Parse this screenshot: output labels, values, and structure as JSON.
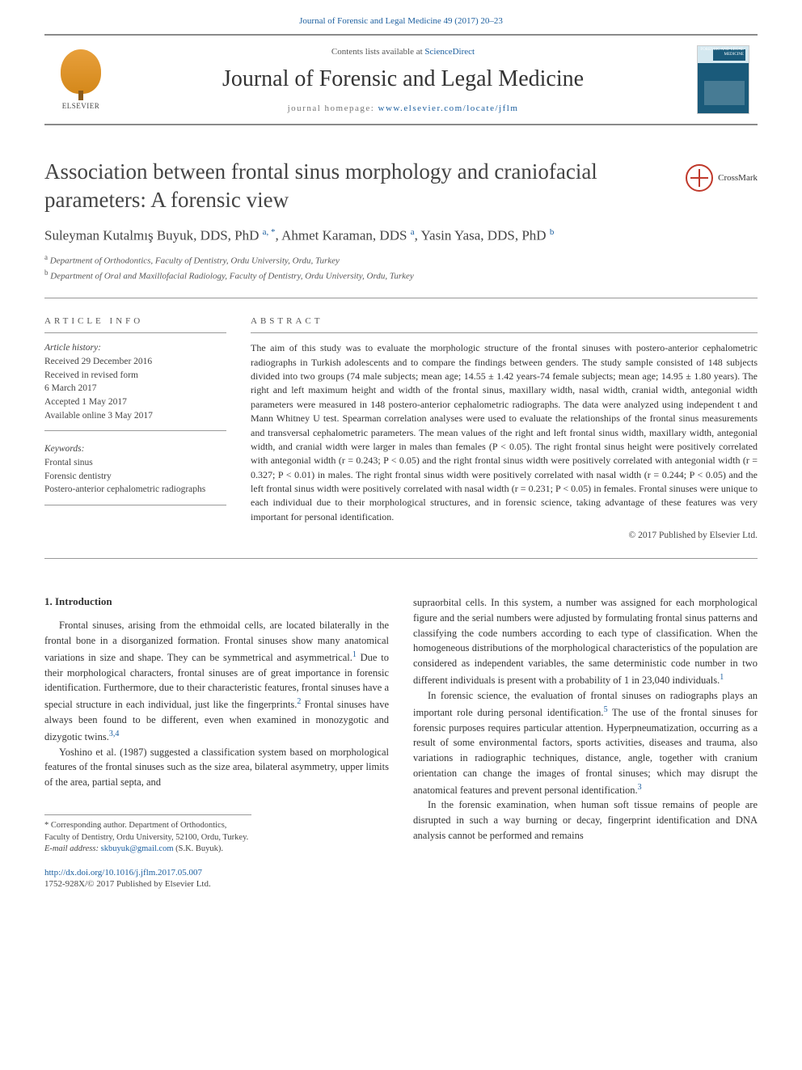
{
  "citation": {
    "text": "Journal of Forensic and Legal Medicine 49 (2017) 20–23",
    "url_color": "#1b5e9e"
  },
  "header": {
    "contents_prefix": "Contents lists available at ",
    "contents_link": "ScienceDirect",
    "journal_name": "Journal of Forensic and Legal Medicine",
    "homepage_prefix": "journal homepage: ",
    "homepage_url": "www.elsevier.com/locate/jflm",
    "publisher": "ELSEVIER",
    "cover_text": "FORENSIC AND LEGAL MEDICINE"
  },
  "article": {
    "title": "Association between frontal sinus morphology and craniofacial parameters: A forensic view",
    "crossmark": "CrossMark",
    "authors_html": "Suleyman Kutalmış Buyuk, DDS, PhD <sup><a>a, *</a></sup>, Ahmet Karaman, DDS <sup><a>a</a></sup>, Yasin Yasa, DDS, PhD <sup><a>b</a></sup>",
    "affiliations": [
      {
        "sup": "a",
        "text": "Department of Orthodontics, Faculty of Dentistry, Ordu University, Ordu, Turkey"
      },
      {
        "sup": "b",
        "text": "Department of Oral and Maxillofacial Radiology, Faculty of Dentistry, Ordu University, Ordu, Turkey"
      }
    ]
  },
  "article_info": {
    "heading": "ARTICLE INFO",
    "history_label": "Article history:",
    "history": [
      "Received 29 December 2016",
      "Received in revised form",
      "6 March 2017",
      "Accepted 1 May 2017",
      "Available online 3 May 2017"
    ],
    "keywords_label": "Keywords:",
    "keywords": [
      "Frontal sinus",
      "Forensic dentistry",
      "Postero-anterior cephalometric radiographs"
    ]
  },
  "abstract": {
    "heading": "ABSTRACT",
    "text": "The aim of this study was to evaluate the morphologic structure of the frontal sinuses with postero-anterior cephalometric radiographs in Turkish adolescents and to compare the findings between genders. The study sample consisted of 148 subjects divided into two groups (74 male subjects; mean age; 14.55 ± 1.42 years-74 female subjects; mean age; 14.95 ± 1.80 years). The right and left maximum height and width of the frontal sinus, maxillary width, nasal width, cranial width, antegonial width parameters were measured in 148 postero-anterior cephalometric radiographs. The data were analyzed using independent t and Mann Whitney U test. Spearman correlation analyses were used to evaluate the relationships of the frontal sinus measurements and transversal cephalometric parameters. The mean values of the right and left frontal sinus width, maxillary width, antegonial width, and cranial width were larger in males than females (P < 0.05). The right frontal sinus height were positively correlated with antegonial width (r = 0.243; P < 0.05) and the right frontal sinus width were positively correlated with antegonial width (r = 0.327; P < 0.01) in males. The right frontal sinus width were positively correlated with nasal width (r = 0.244; P < 0.05) and the left frontal sinus width were positively correlated with nasal width (r = 0.231; P < 0.05) in females. Frontal sinuses were unique to each individual due to their morphological structures, and in forensic science, taking advantage of these features was very important for personal identification.",
    "copyright": "© 2017 Published by Elsevier Ltd."
  },
  "body": {
    "section_heading": "1. Introduction",
    "col1": [
      "Frontal sinuses, arising from the ethmoidal cells, are located bilaterally in the frontal bone in a disorganized formation. Frontal sinuses show many anatomical variations in size and shape. They can be symmetrical and asymmetrical.<sup>1</sup> Due to their morphological characters, frontal sinuses are of great importance in forensic identification. Furthermore, due to their characteristic features, frontal sinuses have a special structure in each individual, just like the fingerprints.<sup>2</sup> Frontal sinuses have always been found to be different, even when examined in monozygotic and dizygotic twins.<sup>3,4</sup>",
      "Yoshino et al. (1987) suggested a classification system based on morphological features of the frontal sinuses such as the size area, bilateral asymmetry, upper limits of the area, partial septa, and"
    ],
    "col2": [
      "supraorbital cells. In this system, a number was assigned for each morphological figure and the serial numbers were adjusted by formulating frontal sinus patterns and classifying the code numbers according to each type of classification. When the homogeneous distributions of the morphological characteristics of the population are considered as independent variables, the same deterministic code number in two different individuals is present with a probability of 1 in 23,040 individuals.<sup>1</sup>",
      "In forensic science, the evaluation of frontal sinuses on radiographs plays an important role during personal identification.<sup>5</sup> The use of the frontal sinuses for forensic purposes requires particular attention. Hyperpneumatization, occurring as a result of some environmental factors, sports activities, diseases and trauma, also variations in radiographic techniques, distance, angle, together with cranium orientation can change the images of frontal sinuses; which may disrupt the anatomical features and prevent personal identification.<sup>3</sup>",
      "In the forensic examination, when human soft tissue remains of people are disrupted in such a way burning or decay, fingerprint identification and DNA analysis cannot be performed and remains"
    ]
  },
  "footnotes": {
    "corresponding": "* Corresponding author. Department of Orthodontics, Faculty of Dentistry, Ordu University, 52100, Ordu, Turkey.",
    "email_label": "E-mail address: ",
    "email": "skbuyuk@gmail.com",
    "email_suffix": " (S.K. Buyuk)."
  },
  "bottom": {
    "doi": "http://dx.doi.org/10.1016/j.jflm.2017.05.007",
    "issn": "1752-928X/© 2017 Published by Elsevier Ltd."
  },
  "colors": {
    "link": "#1b5e9e",
    "text": "#333333",
    "border": "#8a8a8a"
  }
}
